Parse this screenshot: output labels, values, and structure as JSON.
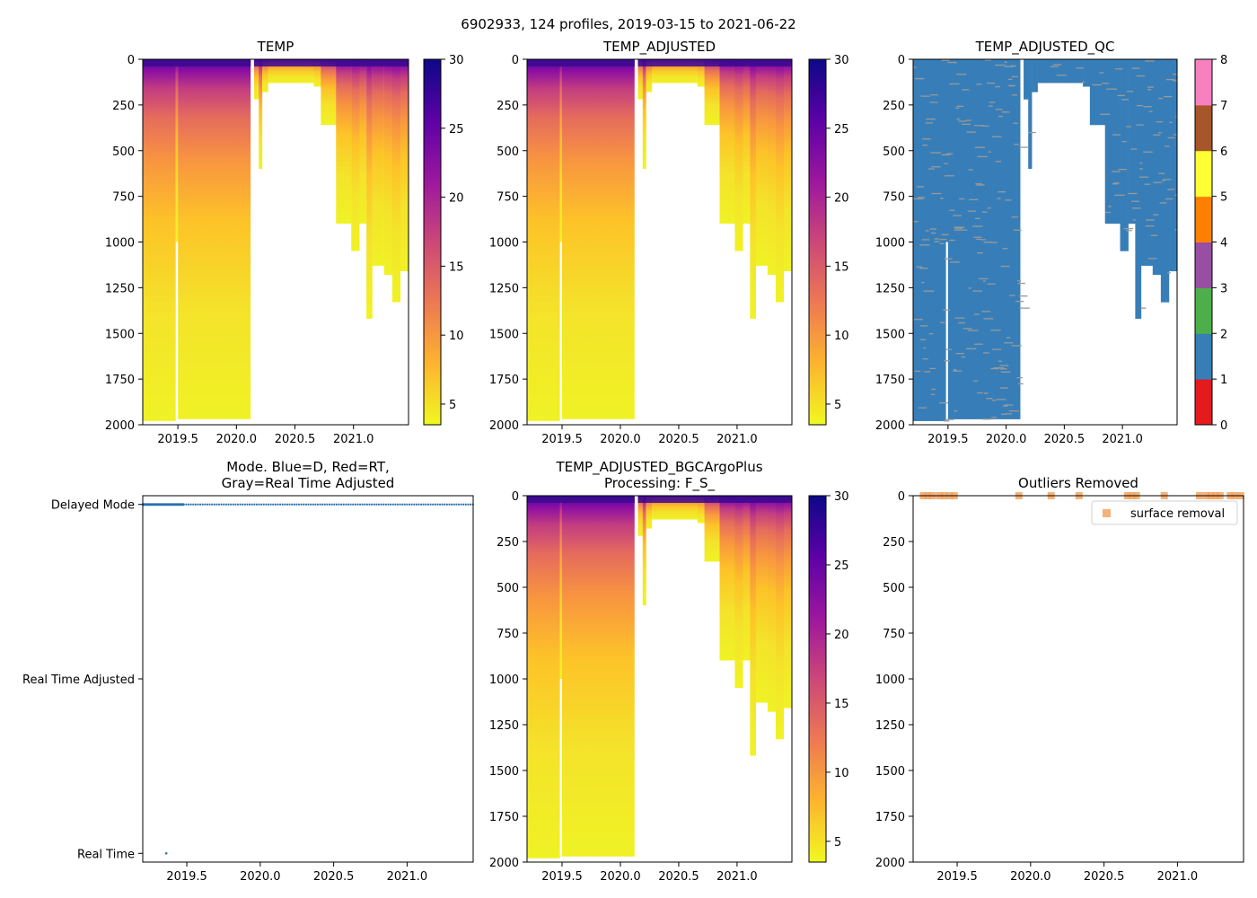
{
  "figure": {
    "suptitle": "6902933, 124 profiles, 2019-03-15 to 2021-06-22"
  },
  "colors": {
    "mode_blue": "#2a6fad",
    "outlier_orange": "#f4a460",
    "qc": [
      "#e41a1c",
      "#377eb8",
      "#4daf4a",
      "#984ea3",
      "#ff7f00",
      "#ffff33",
      "#a65628",
      "#f781bf",
      "#999999"
    ],
    "plasma_stops": [
      "#f0f921",
      "#fdb42f",
      "#ed7953",
      "#cc4778",
      "#9c179e",
      "#5c01a6",
      "#0d0887"
    ]
  },
  "chart_data": [
    {
      "id": "temp",
      "type": "heatmap",
      "title": "TEMP",
      "title_lines": [
        "TEMP"
      ],
      "x_ticks": [
        "2019.5",
        "2020.0",
        "2020.5",
        "2021.0"
      ],
      "x_tick_values": [
        2019.5,
        2020.0,
        2020.5,
        2021.0
      ],
      "xlim": [
        2019.2,
        2021.47
      ],
      "y_ticks": [
        "0",
        "250",
        "500",
        "750",
        "1000",
        "1250",
        "1500",
        "1750",
        "2000"
      ],
      "y_tick_values": [
        0,
        250,
        500,
        750,
        1000,
        1250,
        1500,
        1750,
        2000
      ],
      "ylim": [
        0,
        2000
      ],
      "y_inverted": true,
      "colorbar": {
        "min": 3.5,
        "max": 30,
        "ticks": [
          "5",
          "10",
          "15",
          "20",
          "25",
          "30"
        ],
        "tick_values": [
          5,
          10,
          15,
          20,
          25,
          30
        ],
        "cmap": "plasma_r"
      },
      "profile_segments": [
        {
          "x0": 2019.2,
          "x1": 2019.48,
          "max_depth": 1980
        },
        {
          "x0": 2019.48,
          "x1": 2019.5,
          "max_depth": 1000
        },
        {
          "x0": 2019.5,
          "x1": 2020.12,
          "max_depth": 1970
        },
        {
          "x0": 2020.12,
          "x1": 2020.15,
          "max_depth": 0
        },
        {
          "x0": 2020.15,
          "x1": 2020.19,
          "max_depth": 220
        },
        {
          "x0": 2020.19,
          "x1": 2020.22,
          "max_depth": 600
        },
        {
          "x0": 2020.22,
          "x1": 2020.27,
          "max_depth": 180
        },
        {
          "x0": 2020.27,
          "x1": 2020.66,
          "max_depth": 130
        },
        {
          "x0": 2020.66,
          "x1": 2020.72,
          "max_depth": 150
        },
        {
          "x0": 2020.72,
          "x1": 2020.85,
          "max_depth": 360
        },
        {
          "x0": 2020.85,
          "x1": 2020.98,
          "max_depth": 900
        },
        {
          "x0": 2020.98,
          "x1": 2021.05,
          "max_depth": 1050
        },
        {
          "x0": 2021.05,
          "x1": 2021.11,
          "max_depth": 900
        },
        {
          "x0": 2021.11,
          "x1": 2021.16,
          "max_depth": 1420
        },
        {
          "x0": 2021.16,
          "x1": 2021.26,
          "max_depth": 1130
        },
        {
          "x0": 2021.26,
          "x1": 2021.33,
          "max_depth": 1180
        },
        {
          "x0": 2021.33,
          "x1": 2021.4,
          "max_depth": 1330
        },
        {
          "x0": 2021.4,
          "x1": 2021.47,
          "max_depth": 1160
        }
      ]
    },
    {
      "id": "temp-adjusted",
      "type": "heatmap",
      "title": "TEMP_ADJUSTED",
      "title_lines": [
        "TEMP_ADJUSTED"
      ],
      "x_ticks": [
        "2019.5",
        "2020.0",
        "2020.5",
        "2021.0"
      ],
      "x_tick_values": [
        2019.5,
        2020.0,
        2020.5,
        2021.0
      ],
      "xlim": [
        2019.2,
        2021.47
      ],
      "y_ticks": [
        "0",
        "250",
        "500",
        "750",
        "1000",
        "1250",
        "1500",
        "1750",
        "2000"
      ],
      "y_tick_values": [
        0,
        250,
        500,
        750,
        1000,
        1250,
        1500,
        1750,
        2000
      ],
      "ylim": [
        0,
        2000
      ],
      "y_inverted": true,
      "colorbar": {
        "min": 3.5,
        "max": 30,
        "ticks": [
          "5",
          "10",
          "15",
          "20",
          "25",
          "30"
        ],
        "tick_values": [
          5,
          10,
          15,
          20,
          25,
          30
        ],
        "cmap": "plasma_r"
      },
      "profile_segments": [
        {
          "x0": 2019.2,
          "x1": 2019.48,
          "max_depth": 1980
        },
        {
          "x0": 2019.48,
          "x1": 2019.5,
          "max_depth": 1000
        },
        {
          "x0": 2019.5,
          "x1": 2020.12,
          "max_depth": 1970
        },
        {
          "x0": 2020.12,
          "x1": 2020.15,
          "max_depth": 0
        },
        {
          "x0": 2020.15,
          "x1": 2020.19,
          "max_depth": 220
        },
        {
          "x0": 2020.19,
          "x1": 2020.22,
          "max_depth": 600
        },
        {
          "x0": 2020.22,
          "x1": 2020.27,
          "max_depth": 180
        },
        {
          "x0": 2020.27,
          "x1": 2020.66,
          "max_depth": 130
        },
        {
          "x0": 2020.66,
          "x1": 2020.72,
          "max_depth": 150
        },
        {
          "x0": 2020.72,
          "x1": 2020.85,
          "max_depth": 360
        },
        {
          "x0": 2020.85,
          "x1": 2020.98,
          "max_depth": 900
        },
        {
          "x0": 2020.98,
          "x1": 2021.05,
          "max_depth": 1050
        },
        {
          "x0": 2021.05,
          "x1": 2021.11,
          "max_depth": 900
        },
        {
          "x0": 2021.11,
          "x1": 2021.16,
          "max_depth": 1420
        },
        {
          "x0": 2021.16,
          "x1": 2021.26,
          "max_depth": 1130
        },
        {
          "x0": 2021.26,
          "x1": 2021.33,
          "max_depth": 1180
        },
        {
          "x0": 2021.33,
          "x1": 2021.4,
          "max_depth": 1330
        },
        {
          "x0": 2021.4,
          "x1": 2021.47,
          "max_depth": 1160
        }
      ]
    },
    {
      "id": "temp-adjusted-qc",
      "type": "heatmap",
      "title": "TEMP_ADJUSTED_QC",
      "title_lines": [
        "TEMP_ADJUSTED_QC"
      ],
      "x_ticks": [
        "2019.5",
        "2020.0",
        "2020.5",
        "2021.0"
      ],
      "x_tick_values": [
        2019.5,
        2020.0,
        2020.5,
        2021.0
      ],
      "xlim": [
        2019.2,
        2021.47
      ],
      "y_ticks": [
        "0",
        "250",
        "500",
        "750",
        "1000",
        "1250",
        "1500",
        "1750",
        "2000"
      ],
      "y_tick_values": [
        0,
        250,
        500,
        750,
        1000,
        1250,
        1500,
        1750,
        2000
      ],
      "ylim": [
        0,
        2000
      ],
      "y_inverted": true,
      "colorbar": {
        "min": 0,
        "max": 8,
        "ticks": [
          "0",
          "1",
          "2",
          "3",
          "4",
          "5",
          "6",
          "7",
          "8"
        ],
        "tick_values": [
          0,
          1,
          2,
          3,
          4,
          5,
          6,
          7,
          8
        ],
        "cmap": "qc"
      },
      "dominant_flag": 1,
      "secondary_flag": 8,
      "profile_segments": [
        {
          "x0": 2019.2,
          "x1": 2019.48,
          "max_depth": 1980
        },
        {
          "x0": 2019.48,
          "x1": 2019.5,
          "max_depth": 1000
        },
        {
          "x0": 2019.5,
          "x1": 2020.12,
          "max_depth": 1970
        },
        {
          "x0": 2020.12,
          "x1": 2020.15,
          "max_depth": 0
        },
        {
          "x0": 2020.15,
          "x1": 2020.19,
          "max_depth": 220
        },
        {
          "x0": 2020.19,
          "x1": 2020.22,
          "max_depth": 600
        },
        {
          "x0": 2020.22,
          "x1": 2020.27,
          "max_depth": 180
        },
        {
          "x0": 2020.27,
          "x1": 2020.66,
          "max_depth": 130
        },
        {
          "x0": 2020.66,
          "x1": 2020.72,
          "max_depth": 150
        },
        {
          "x0": 2020.72,
          "x1": 2020.85,
          "max_depth": 360
        },
        {
          "x0": 2020.85,
          "x1": 2020.98,
          "max_depth": 900
        },
        {
          "x0": 2020.98,
          "x1": 2021.05,
          "max_depth": 1050
        },
        {
          "x0": 2021.05,
          "x1": 2021.11,
          "max_depth": 900
        },
        {
          "x0": 2021.11,
          "x1": 2021.16,
          "max_depth": 1420
        },
        {
          "x0": 2021.16,
          "x1": 2021.26,
          "max_depth": 1130
        },
        {
          "x0": 2021.26,
          "x1": 2021.33,
          "max_depth": 1180
        },
        {
          "x0": 2021.33,
          "x1": 2021.4,
          "max_depth": 1330
        },
        {
          "x0": 2021.4,
          "x1": 2021.47,
          "max_depth": 1160
        }
      ]
    },
    {
      "id": "mode",
      "type": "scatter",
      "title": "Mode. Blue=D, Red=RT, Gray=Real Time Adjusted",
      "title_lines": [
        "Mode. Blue=D, Red=RT,",
        "Gray=Real Time Adjusted"
      ],
      "x_ticks": [
        "2019.5",
        "2020.0",
        "2020.5",
        "2021.0"
      ],
      "x_tick_values": [
        2019.5,
        2020.0,
        2020.5,
        2021.0
      ],
      "xlim": [
        2019.2,
        2021.45
      ],
      "y_ticks": [
        "Delayed Mode",
        "Real Time Adjusted",
        "Real Time"
      ],
      "y_tick_values": [
        2,
        1,
        0
      ],
      "ylim": [
        -0.05,
        2.05
      ],
      "delayed_mode_dense": {
        "x_start": 2019.2,
        "x_end": 2019.48,
        "step": 0.0035,
        "y": 2
      },
      "delayed_mode_sparse": {
        "x_start": 2019.48,
        "x_end": 2021.45,
        "step": 0.016,
        "y": 2
      },
      "real_time_points": [
        {
          "x": 2019.36,
          "y": 0
        }
      ]
    },
    {
      "id": "temp-bgcargoplus",
      "type": "heatmap",
      "title": "TEMP_ADJUSTED_BGCArgoPlus Processing: F_S_",
      "title_lines": [
        "TEMP_ADJUSTED_BGCArgoPlus",
        "Processing: F_S_"
      ],
      "x_ticks": [
        "2019.5",
        "2020.0",
        "2020.5",
        "2021.0"
      ],
      "x_tick_values": [
        2019.5,
        2020.0,
        2020.5,
        2021.0
      ],
      "xlim": [
        2019.2,
        2021.47
      ],
      "y_ticks": [
        "0",
        "250",
        "500",
        "750",
        "1000",
        "1250",
        "1500",
        "1750",
        "2000"
      ],
      "y_tick_values": [
        0,
        250,
        500,
        750,
        1000,
        1250,
        1500,
        1750,
        2000
      ],
      "ylim": [
        0,
        2000
      ],
      "y_inverted": true,
      "colorbar": {
        "min": 3.5,
        "max": 30,
        "ticks": [
          "5",
          "10",
          "15",
          "20",
          "25",
          "30"
        ],
        "tick_values": [
          5,
          10,
          15,
          20,
          25,
          30
        ],
        "cmap": "plasma_r"
      },
      "profile_segments": [
        {
          "x0": 2019.2,
          "x1": 2019.48,
          "max_depth": 1980
        },
        {
          "x0": 2019.48,
          "x1": 2019.5,
          "max_depth": 1000
        },
        {
          "x0": 2019.5,
          "x1": 2020.12,
          "max_depth": 1970
        },
        {
          "x0": 2020.12,
          "x1": 2020.15,
          "max_depth": 0
        },
        {
          "x0": 2020.15,
          "x1": 2020.19,
          "max_depth": 220
        },
        {
          "x0": 2020.19,
          "x1": 2020.22,
          "max_depth": 600
        },
        {
          "x0": 2020.22,
          "x1": 2020.27,
          "max_depth": 180
        },
        {
          "x0": 2020.27,
          "x1": 2020.66,
          "max_depth": 130
        },
        {
          "x0": 2020.66,
          "x1": 2020.72,
          "max_depth": 150
        },
        {
          "x0": 2020.72,
          "x1": 2020.85,
          "max_depth": 360
        },
        {
          "x0": 2020.85,
          "x1": 2020.98,
          "max_depth": 900
        },
        {
          "x0": 2020.98,
          "x1": 2021.05,
          "max_depth": 1050
        },
        {
          "x0": 2021.05,
          "x1": 2021.11,
          "max_depth": 900
        },
        {
          "x0": 2021.11,
          "x1": 2021.16,
          "max_depth": 1420
        },
        {
          "x0": 2021.16,
          "x1": 2021.26,
          "max_depth": 1130
        },
        {
          "x0": 2021.26,
          "x1": 2021.33,
          "max_depth": 1180
        },
        {
          "x0": 2021.33,
          "x1": 2021.4,
          "max_depth": 1330
        },
        {
          "x0": 2021.4,
          "x1": 2021.47,
          "max_depth": 1160
        }
      ]
    },
    {
      "id": "outliers",
      "type": "scatter",
      "title": "Outliers Removed",
      "title_lines": [
        "Outliers Removed"
      ],
      "x_ticks": [
        "2019.5",
        "2020.0",
        "2020.5",
        "2021.0"
      ],
      "x_tick_values": [
        2019.5,
        2020.0,
        2020.5,
        2021.0
      ],
      "xlim": [
        2019.2,
        2021.45
      ],
      "y_ticks": [
        "0",
        "250",
        "500",
        "750",
        "1000",
        "1250",
        "1500",
        "1750",
        "2000"
      ],
      "y_tick_values": [
        0,
        250,
        500,
        750,
        1000,
        1250,
        1500,
        1750,
        2000
      ],
      "ylim": [
        0,
        2000
      ],
      "y_inverted": true,
      "legend": {
        "label": "surface removal",
        "position": "top-right"
      },
      "points": [
        {
          "x": 2019.27,
          "y": 0
        },
        {
          "x": 2019.3,
          "y": 0
        },
        {
          "x": 2019.33,
          "y": 0
        },
        {
          "x": 2019.38,
          "y": 0
        },
        {
          "x": 2019.41,
          "y": 0
        },
        {
          "x": 2019.45,
          "y": 0
        },
        {
          "x": 2019.48,
          "y": 0
        },
        {
          "x": 2019.92,
          "y": 0
        },
        {
          "x": 2020.14,
          "y": 0
        },
        {
          "x": 2020.33,
          "y": 0
        },
        {
          "x": 2020.66,
          "y": 0
        },
        {
          "x": 2020.69,
          "y": 0
        },
        {
          "x": 2020.72,
          "y": 0
        },
        {
          "x": 2020.91,
          "y": 0
        },
        {
          "x": 2021.15,
          "y": 0
        },
        {
          "x": 2021.2,
          "y": 0
        },
        {
          "x": 2021.23,
          "y": 0
        },
        {
          "x": 2021.26,
          "y": 0
        },
        {
          "x": 2021.29,
          "y": 0
        },
        {
          "x": 2021.36,
          "y": 0
        },
        {
          "x": 2021.39,
          "y": 0
        },
        {
          "x": 2021.43,
          "y": 0
        }
      ]
    }
  ]
}
